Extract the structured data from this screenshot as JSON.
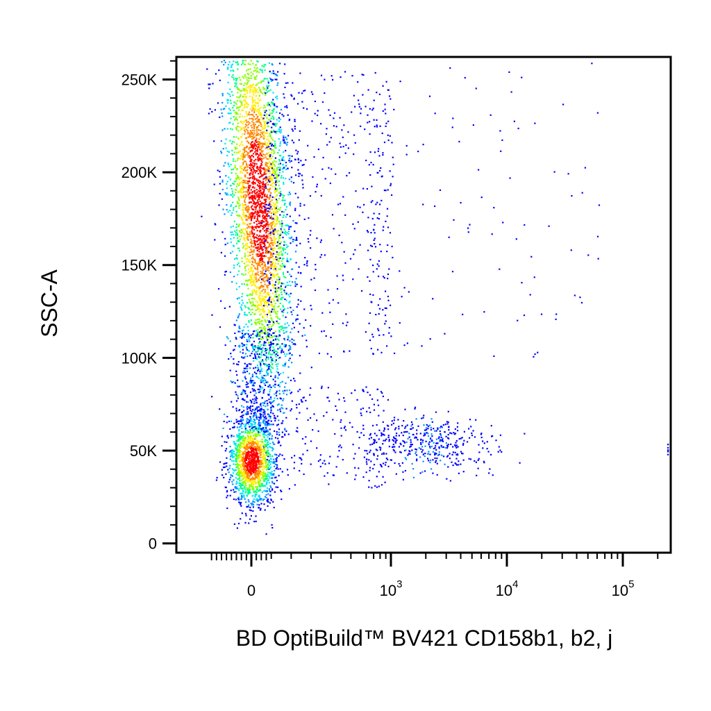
{
  "chart_data": {
    "type": "scatter",
    "title": "",
    "xlabel": "BD OptiBuild™ BV421 CD158b1, b2, j",
    "ylabel": "SSC-A",
    "x_scale": "biexponential",
    "y_scale": "linear",
    "xlim": [
      -200,
      200000
    ],
    "ylim": [
      -5000,
      262144
    ],
    "x_ticks": [
      {
        "value": 0,
        "label": "0"
      },
      {
        "value": 1000,
        "label": "10",
        "exp": "3"
      },
      {
        "value": 10000,
        "label": "10",
        "exp": "4"
      },
      {
        "value": 100000,
        "label": "10",
        "exp": "5"
      }
    ],
    "y_ticks": [
      {
        "value": 0,
        "label": "0"
      },
      {
        "value": 50000,
        "label": "50K"
      },
      {
        "value": 100000,
        "label": "100K"
      },
      {
        "value": 150000,
        "label": "150K"
      },
      {
        "value": 200000,
        "label": "200K"
      },
      {
        "value": 250000,
        "label": "250K"
      }
    ],
    "grid": false,
    "legend": "none",
    "color_scheme": "density pseudocolor (blue to red)",
    "colors": {
      "low": "#0000ff",
      "mid_low": "#00b4ff",
      "mid": "#00ff66",
      "mid_high": "#ffff00",
      "high": "#ff0000"
    },
    "populations": [
      {
        "x_center": 30,
        "y_center": 185000,
        "x_spread": "narrow",
        "y_spread": 60000,
        "density": "high"
      },
      {
        "x_center": 0,
        "y_center": 45000,
        "x_spread": "narrow",
        "y_spread": 12000,
        "density": "high"
      },
      {
        "x_center": 2000,
        "y_center": 54000,
        "x_spread": "0.5 to 8 x 10^3",
        "y_spread": 8000,
        "density": "low"
      }
    ]
  }
}
